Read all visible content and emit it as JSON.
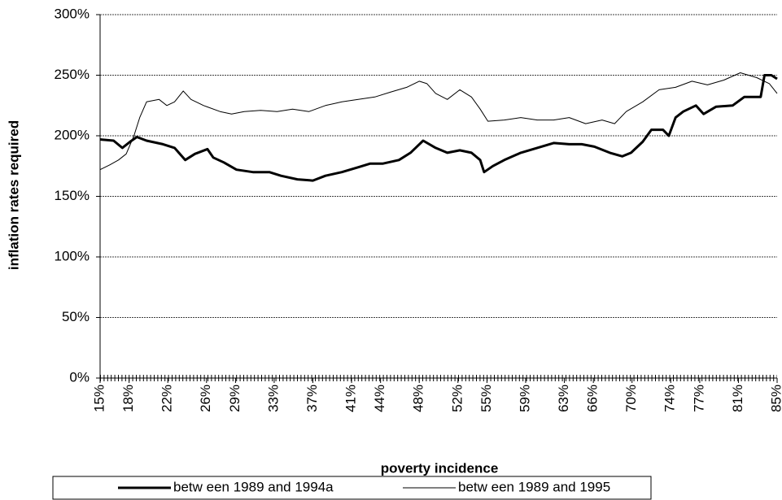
{
  "chart_data": {
    "type": "line",
    "xlabel": "poverty incidence",
    "ylabel": "inflation rates required",
    "xlim": [
      15,
      85
    ],
    "ylim": [
      0,
      300
    ],
    "grid": true,
    "legend": "bottom",
    "xticks": [
      {
        "value": 15,
        "label": "15%"
      },
      {
        "value": 18,
        "label": "18%"
      },
      {
        "value": 22,
        "label": "22%"
      },
      {
        "value": 26,
        "label": "26%"
      },
      {
        "value": 29,
        "label": "29%"
      },
      {
        "value": 33,
        "label": "33%"
      },
      {
        "value": 37,
        "label": "37%"
      },
      {
        "value": 41,
        "label": "41%"
      },
      {
        "value": 44,
        "label": "44%"
      },
      {
        "value": 48,
        "label": "48%"
      },
      {
        "value": 52,
        "label": "52%"
      },
      {
        "value": 55,
        "label": "55%"
      },
      {
        "value": 59,
        "label": "59%"
      },
      {
        "value": 63,
        "label": "63%"
      },
      {
        "value": 66,
        "label": "66%"
      },
      {
        "value": 70,
        "label": "70%"
      },
      {
        "value": 74,
        "label": "74%"
      },
      {
        "value": 77,
        "label": "77%"
      },
      {
        "value": 81,
        "label": "81%"
      },
      {
        "value": 85,
        "label": "85%"
      }
    ],
    "yticks": [
      {
        "value": 0,
        "label": "0%"
      },
      {
        "value": 50,
        "label": "50%"
      },
      {
        "value": 100,
        "label": "100%"
      },
      {
        "value": 150,
        "label": "150%"
      },
      {
        "value": 200,
        "label": "200%"
      },
      {
        "value": 250,
        "label": "250%"
      },
      {
        "value": 300,
        "label": "300%"
      }
    ],
    "series": [
      {
        "name": "betw een 1989 and 1994a",
        "color": "#000000",
        "width": 3,
        "x": [
          15,
          16.4,
          17.3,
          18.1,
          18.8,
          19.8,
          21.5,
          22.7,
          23.8,
          24.8,
          26.1,
          26.7,
          27.8,
          29.1,
          30.8,
          32.5,
          33.7,
          35.4,
          37.0,
          38.3,
          40.0,
          41.7,
          42.9,
          44.2,
          45.9,
          47.1,
          48.4,
          49.7,
          50.9,
          52.2,
          53.4,
          54.3,
          54.7,
          55.6,
          56.8,
          58.5,
          60.2,
          61.9,
          63.5,
          64.8,
          66.1,
          67.7,
          69.0,
          69.9,
          71.1,
          72.0,
          73.2,
          73.8,
          74.5,
          75.3,
          76.6,
          77.4,
          78.7,
          80.4,
          81.6,
          83.3,
          83.7,
          84.4,
          85
        ],
        "values": [
          197,
          196,
          190,
          195,
          199,
          196,
          193,
          190,
          180,
          185,
          189,
          182,
          178,
          172,
          170,
          170,
          167,
          164,
          163,
          167,
          170,
          174,
          177,
          177,
          180,
          186,
          196,
          190,
          186,
          188,
          186,
          180,
          170,
          175,
          180,
          186,
          190,
          194,
          193,
          193,
          191,
          186,
          183,
          186,
          195,
          205,
          205,
          200,
          215,
          220,
          225,
          218,
          224,
          225,
          232,
          232,
          250,
          250,
          247
        ]
      },
      {
        "name": "betw een 1989 and 1995",
        "color": "#000000",
        "width": 1,
        "x": [
          15,
          16.0,
          16.9,
          17.7,
          18.5,
          19.1,
          19.8,
          21.1,
          21.9,
          22.7,
          23.6,
          24.4,
          25.7,
          27.4,
          28.6,
          29.9,
          31.6,
          33.3,
          34.9,
          36.6,
          38.3,
          40.0,
          41.7,
          43.4,
          45.0,
          46.7,
          48.0,
          48.8,
          49.7,
          50.9,
          52.2,
          53.4,
          54.3,
          55.1,
          56.8,
          58.5,
          60.2,
          61.9,
          63.5,
          65.2,
          66.9,
          68.2,
          69.4,
          71.1,
          72.8,
          74.5,
          76.2,
          77.8,
          79.5,
          81.2,
          82.9,
          84.2,
          85
        ],
        "values": [
          172,
          176,
          180,
          185,
          200,
          215,
          228,
          230,
          225,
          228,
          237,
          230,
          225,
          220,
          218,
          220,
          221,
          220,
          222,
          220,
          225,
          228,
          230,
          232,
          236,
          240,
          245,
          243,
          235,
          230,
          238,
          232,
          222,
          212,
          213,
          215,
          213,
          213,
          215,
          210,
          213,
          210,
          220,
          228,
          238,
          240,
          245,
          242,
          246,
          252,
          248,
          243,
          235
        ]
      }
    ]
  }
}
